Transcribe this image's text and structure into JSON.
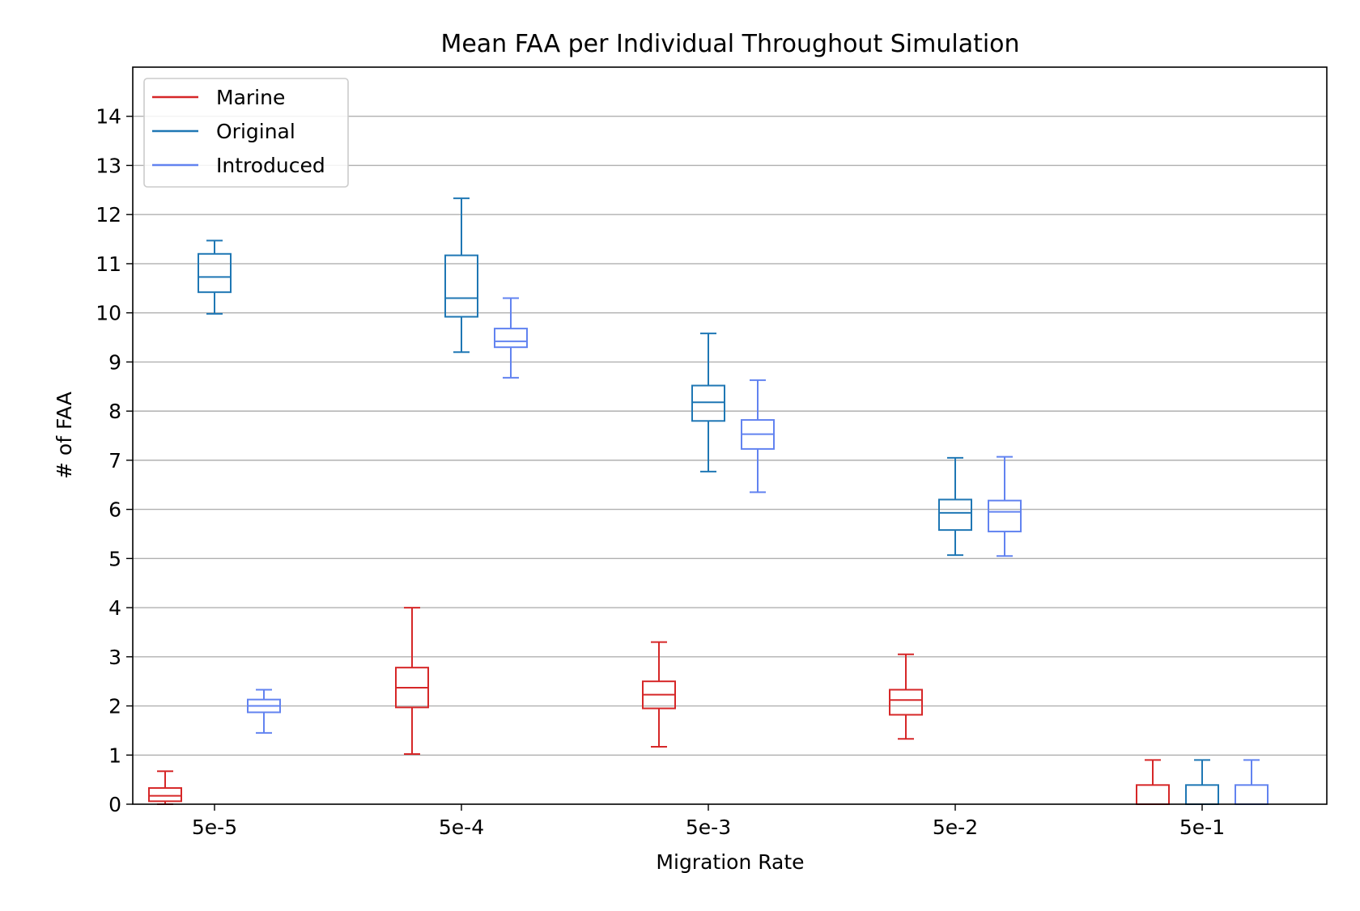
{
  "chart_data": {
    "type": "box",
    "title": "Mean FAA per Individual Throughout Simulation",
    "xlabel": "Migration Rate",
    "ylabel": "# of FAA",
    "categories": [
      "5e-5",
      "5e-4",
      "5e-3",
      "5e-2",
      "5e-1"
    ],
    "ylim": [
      0,
      15
    ],
    "yticks": [
      0,
      1,
      2,
      3,
      4,
      5,
      6,
      7,
      8,
      9,
      10,
      11,
      12,
      13,
      14
    ],
    "grid": "horizontal",
    "legend_position": "top-left",
    "series": [
      {
        "name": "Marine",
        "color": "#d62728",
        "boxes": [
          {
            "category": "5e-5",
            "whisker_low": 0.0,
            "q1": 0.06,
            "median": 0.17,
            "q3": 0.33,
            "whisker_high": 0.67
          },
          {
            "category": "5e-4",
            "whisker_low": 1.02,
            "q1": 1.97,
            "median": 2.37,
            "q3": 2.78,
            "whisker_high": 4.0
          },
          {
            "category": "5e-3",
            "whisker_low": 1.17,
            "q1": 1.95,
            "median": 2.23,
            "q3": 2.5,
            "whisker_high": 3.3
          },
          {
            "category": "5e-2",
            "whisker_low": 1.33,
            "q1": 1.82,
            "median": 2.12,
            "q3": 2.33,
            "whisker_high": 3.05
          },
          {
            "category": "5e-1",
            "whisker_low": 0.0,
            "q1": 0.0,
            "median": 0.0,
            "q3": 0.39,
            "whisker_high": 0.9
          }
        ]
      },
      {
        "name": "Original",
        "color": "#1f77b4",
        "boxes": [
          {
            "category": "5e-5",
            "whisker_low": 9.98,
            "q1": 10.42,
            "median": 10.73,
            "q3": 11.2,
            "whisker_high": 11.47
          },
          {
            "category": "5e-4",
            "whisker_low": 9.2,
            "q1": 9.92,
            "median": 10.3,
            "q3": 11.17,
            "whisker_high": 12.33
          },
          {
            "category": "5e-3",
            "whisker_low": 6.77,
            "q1": 7.8,
            "median": 8.18,
            "q3": 8.52,
            "whisker_high": 9.58
          },
          {
            "category": "5e-2",
            "whisker_low": 5.07,
            "q1": 5.58,
            "median": 5.93,
            "q3": 6.2,
            "whisker_high": 7.05
          },
          {
            "category": "5e-1",
            "whisker_low": 0.0,
            "q1": 0.0,
            "median": 0.0,
            "q3": 0.39,
            "whisker_high": 0.9
          }
        ]
      },
      {
        "name": "Introduced",
        "color": "#6283f0",
        "boxes": [
          {
            "category": "5e-5",
            "whisker_low": 1.45,
            "q1": 1.87,
            "median": 2.0,
            "q3": 2.13,
            "whisker_high": 2.33
          },
          {
            "category": "5e-4",
            "whisker_low": 8.68,
            "q1": 9.3,
            "median": 9.42,
            "q3": 9.68,
            "whisker_high": 10.3
          },
          {
            "category": "5e-3",
            "whisker_low": 6.35,
            "q1": 7.23,
            "median": 7.53,
            "q3": 7.82,
            "whisker_high": 8.63
          },
          {
            "category": "5e-2",
            "whisker_low": 5.05,
            "q1": 5.55,
            "median": 5.95,
            "q3": 6.18,
            "whisker_high": 7.07
          },
          {
            "category": "5e-1",
            "whisker_low": 0.0,
            "q1": 0.0,
            "median": 0.0,
            "q3": 0.39,
            "whisker_high": 0.9
          }
        ]
      }
    ]
  }
}
